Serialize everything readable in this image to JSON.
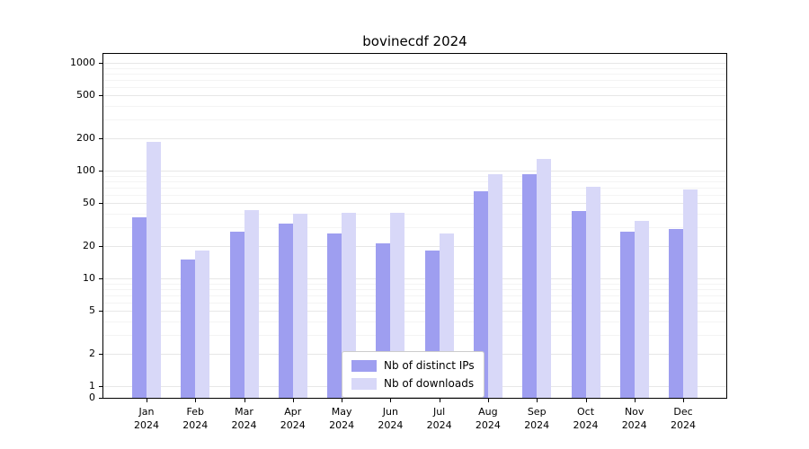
{
  "chart_data": {
    "type": "bar",
    "title": "bovinecdf 2024",
    "y_axis": {
      "scale": "symlog",
      "ticks": [
        0,
        1,
        2,
        5,
        10,
        20,
        50,
        100,
        200,
        500,
        1000
      ],
      "range": [
        0,
        1200
      ]
    },
    "categories": [
      {
        "month": "Jan",
        "year": "2024"
      },
      {
        "month": "Feb",
        "year": "2024"
      },
      {
        "month": "Mar",
        "year": "2024"
      },
      {
        "month": "Apr",
        "year": "2024"
      },
      {
        "month": "May",
        "year": "2024"
      },
      {
        "month": "Jun",
        "year": "2024"
      },
      {
        "month": "Jul",
        "year": "2024"
      },
      {
        "month": "Aug",
        "year": "2024"
      },
      {
        "month": "Sep",
        "year": "2024"
      },
      {
        "month": "Oct",
        "year": "2024"
      },
      {
        "month": "Nov",
        "year": "2024"
      },
      {
        "month": "Dec",
        "year": "2024"
      }
    ],
    "series": [
      {
        "name": "Nb of distinct IPs",
        "color": "#9e9ef0",
        "values": [
          37,
          15,
          27,
          32,
          26,
          21,
          18,
          64,
          92,
          42,
          27,
          29
        ]
      },
      {
        "name": "Nb of downloads",
        "color": "#d8d8f8",
        "values": [
          185,
          18,
          43,
          40,
          41,
          41,
          26,
          93,
          128,
          71,
          34,
          67
        ]
      }
    ],
    "legend": {
      "position": "lower center"
    },
    "grid": {
      "major_color": "#e7e7e7",
      "minor_color": "#f4f4f4"
    }
  }
}
